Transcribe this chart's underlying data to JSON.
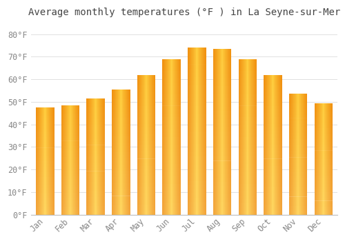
{
  "title": "Average monthly temperatures (°F ) in La Seyne-sur-Mer",
  "months": [
    "Jan",
    "Feb",
    "Mar",
    "Apr",
    "May",
    "Jun",
    "Jul",
    "Aug",
    "Sep",
    "Oct",
    "Nov",
    "Dec"
  ],
  "values": [
    47.5,
    48.5,
    51.5,
    55.5,
    62,
    69,
    74,
    73.5,
    69,
    62,
    53.5,
    49.5
  ],
  "bar_color_center": "#FFD040",
  "bar_color_edge": "#F0900A",
  "background_color": "#ffffff",
  "grid_color": "#e0e0e0",
  "text_color": "#888888",
  "ylim": [
    0,
    85
  ],
  "yticks": [
    0,
    10,
    20,
    30,
    40,
    50,
    60,
    70,
    80
  ],
  "ytick_labels": [
    "0°F",
    "10°F",
    "20°F",
    "30°F",
    "40°F",
    "50°F",
    "60°F",
    "70°F",
    "80°F"
  ],
  "title_fontsize": 10,
  "tick_fontsize": 8.5,
  "font_family": "monospace"
}
